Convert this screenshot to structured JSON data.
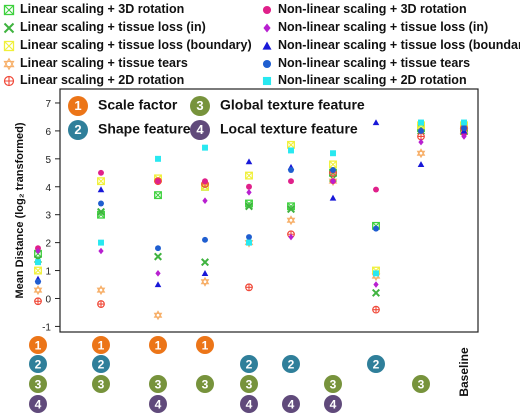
{
  "legend": [
    {
      "label": "Linear scaling + 3D rotation",
      "marker": "square-x",
      "color": "#3ed13e"
    },
    {
      "label": "Linear scaling + tissue loss (in)",
      "marker": "x",
      "color": "#3fb33f"
    },
    {
      "label": "Linear scaling + tissue loss (boundary)",
      "marker": "square-x",
      "color": "#f0f03a"
    },
    {
      "label": "Linear scaling + tissue tears",
      "marker": "star",
      "color": "#f7b06a"
    },
    {
      "label": "Linear scaling + 2D rotation",
      "marker": "circle-plus",
      "color": "#f04a3a"
    },
    {
      "label": "Non-linear scaling + 3D rotation",
      "marker": "circle",
      "color": "#e0208a"
    },
    {
      "label": "Non-linear scaling + tissue loss (in)",
      "marker": "diamond",
      "color": "#b820d0"
    },
    {
      "label": "Non-linear scaling + tissue loss (boundary)",
      "marker": "triangle",
      "color": "#1818d8"
    },
    {
      "label": "Non-linear scaling + tissue tears",
      "marker": "circle",
      "color": "#1f5ed0"
    },
    {
      "label": "Non-linear scaling + 2D rotation",
      "marker": "square",
      "color": "#28e8f0"
    }
  ],
  "features": [
    {
      "num": "1",
      "label": "Scale factor",
      "color": "#ec7518"
    },
    {
      "num": "2",
      "label": "Shape feature",
      "color": "#2f7f9a"
    },
    {
      "num": "3",
      "label": "Global texture feature",
      "color": "#77933c"
    },
    {
      "num": "4",
      "label": "Local texture feature",
      "color": "#604a7b"
    }
  ],
  "feature_table": [
    [
      "1",
      "2",
      "3",
      "4"
    ],
    [
      "1",
      "2",
      "3"
    ],
    [
      "1",
      "3",
      "4"
    ],
    [
      "1",
      "3"
    ],
    [
      "2",
      "3",
      "4"
    ],
    [
      "2",
      "4"
    ],
    [
      "3",
      "4"
    ],
    [
      "2"
    ],
    [
      "3"
    ],
    []
  ],
  "baseline_label": "Baseline",
  "chart_data": {
    "type": "scatter",
    "ylabel": "Mean Distance (log₂ transformed)",
    "ylim": [
      -1.2,
      7.5
    ],
    "yticks": [
      -1,
      0,
      1,
      2,
      3,
      4,
      5,
      6,
      7
    ],
    "xlabel": "",
    "x": [
      1,
      2,
      3,
      4,
      5,
      6,
      7,
      8,
      9,
      10
    ],
    "series": [
      {
        "name": "Linear scaling + 3D rotation",
        "values": [
          1.6,
          3.0,
          3.7,
          4.0,
          3.4,
          3.3,
          4.5,
          2.6,
          6.1,
          6.0
        ]
      },
      {
        "name": "Linear scaling + tissue loss (in)",
        "values": [
          1.4,
          3.1,
          1.5,
          1.3,
          3.3,
          3.2,
          4.3,
          0.2,
          6.0,
          6.1
        ]
      },
      {
        "name": "Linear scaling + tissue loss (boundary)",
        "values": [
          1.0,
          4.2,
          4.3,
          4.0,
          4.4,
          5.5,
          4.8,
          1.0,
          6.2,
          6.2
        ]
      },
      {
        "name": "Linear scaling + tissue tears",
        "values": [
          0.3,
          0.3,
          -0.6,
          0.6,
          2.0,
          2.8,
          4.2,
          0.8,
          5.2,
          6.0
        ]
      },
      {
        "name": "Linear scaling + 2D rotation",
        "values": [
          -0.1,
          -0.2,
          4.2,
          4.1,
          0.4,
          2.3,
          4.5,
          -0.4,
          5.8,
          6.1
        ]
      },
      {
        "name": "Non-linear scaling + 3D rotation",
        "values": [
          1.8,
          4.5,
          4.2,
          4.2,
          4.0,
          4.2,
          4.2,
          3.9,
          6.0,
          5.9
        ]
      },
      {
        "name": "Non-linear scaling + tissue loss (in)",
        "values": [
          1.7,
          1.7,
          0.9,
          3.5,
          3.8,
          2.2,
          4.2,
          0.5,
          5.6,
          5.8
        ]
      },
      {
        "name": "Non-linear scaling + tissue loss (boundary)",
        "values": [
          0.7,
          3.9,
          0.5,
          0.9,
          4.9,
          4.7,
          3.6,
          6.3,
          4.8,
          6.0
        ]
      },
      {
        "name": "Non-linear scaling + tissue tears",
        "values": [
          0.6,
          3.4,
          1.8,
          2.1,
          2.2,
          4.6,
          4.6,
          2.5,
          6.0,
          6.1
        ]
      },
      {
        "name": "Non-linear scaling + 2D rotation",
        "values": [
          1.3,
          2.0,
          5.0,
          5.4,
          2.0,
          5.3,
          5.2,
          0.9,
          6.3,
          6.3
        ]
      }
    ]
  }
}
